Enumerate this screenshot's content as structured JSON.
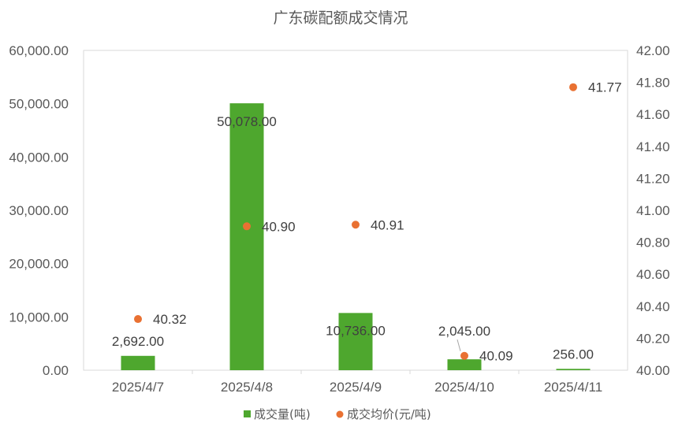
{
  "chart_data": {
    "type": "bar",
    "title": "广东碳配额成交情况",
    "categories": [
      "2025/4/7",
      "2025/4/8",
      "2025/4/9",
      "2025/4/10",
      "2025/4/11"
    ],
    "series": [
      {
        "name": "成交量(吨)",
        "type": "bar",
        "axis": "left",
        "color": "#4EA72E",
        "values": [
          2692,
          50078,
          10736,
          2045,
          256
        ],
        "labels": [
          "2,692.00",
          "50,078.00",
          "10,736.00",
          "2,045.00",
          "256.00"
        ]
      },
      {
        "name": "成交均价(元/吨)",
        "type": "scatter",
        "axis": "right",
        "color": "#E97132",
        "values": [
          40.32,
          40.9,
          40.91,
          40.09,
          41.77
        ],
        "labels": [
          "40.32",
          "40.90",
          "40.91",
          "40.09",
          "41.77"
        ]
      }
    ],
    "y_left": {
      "min": 0,
      "max": 60000,
      "ticks": [
        "0.00",
        "10,000.00",
        "20,000.00",
        "30,000.00",
        "40,000.00",
        "50,000.00",
        "60,000.00"
      ]
    },
    "y_right": {
      "min": 40,
      "max": 42,
      "ticks": [
        "40.00",
        "40.20",
        "40.40",
        "40.60",
        "40.80",
        "41.00",
        "41.20",
        "41.40",
        "41.60",
        "41.80",
        "42.00"
      ]
    },
    "grid": false,
    "legend_position": "bottom"
  }
}
